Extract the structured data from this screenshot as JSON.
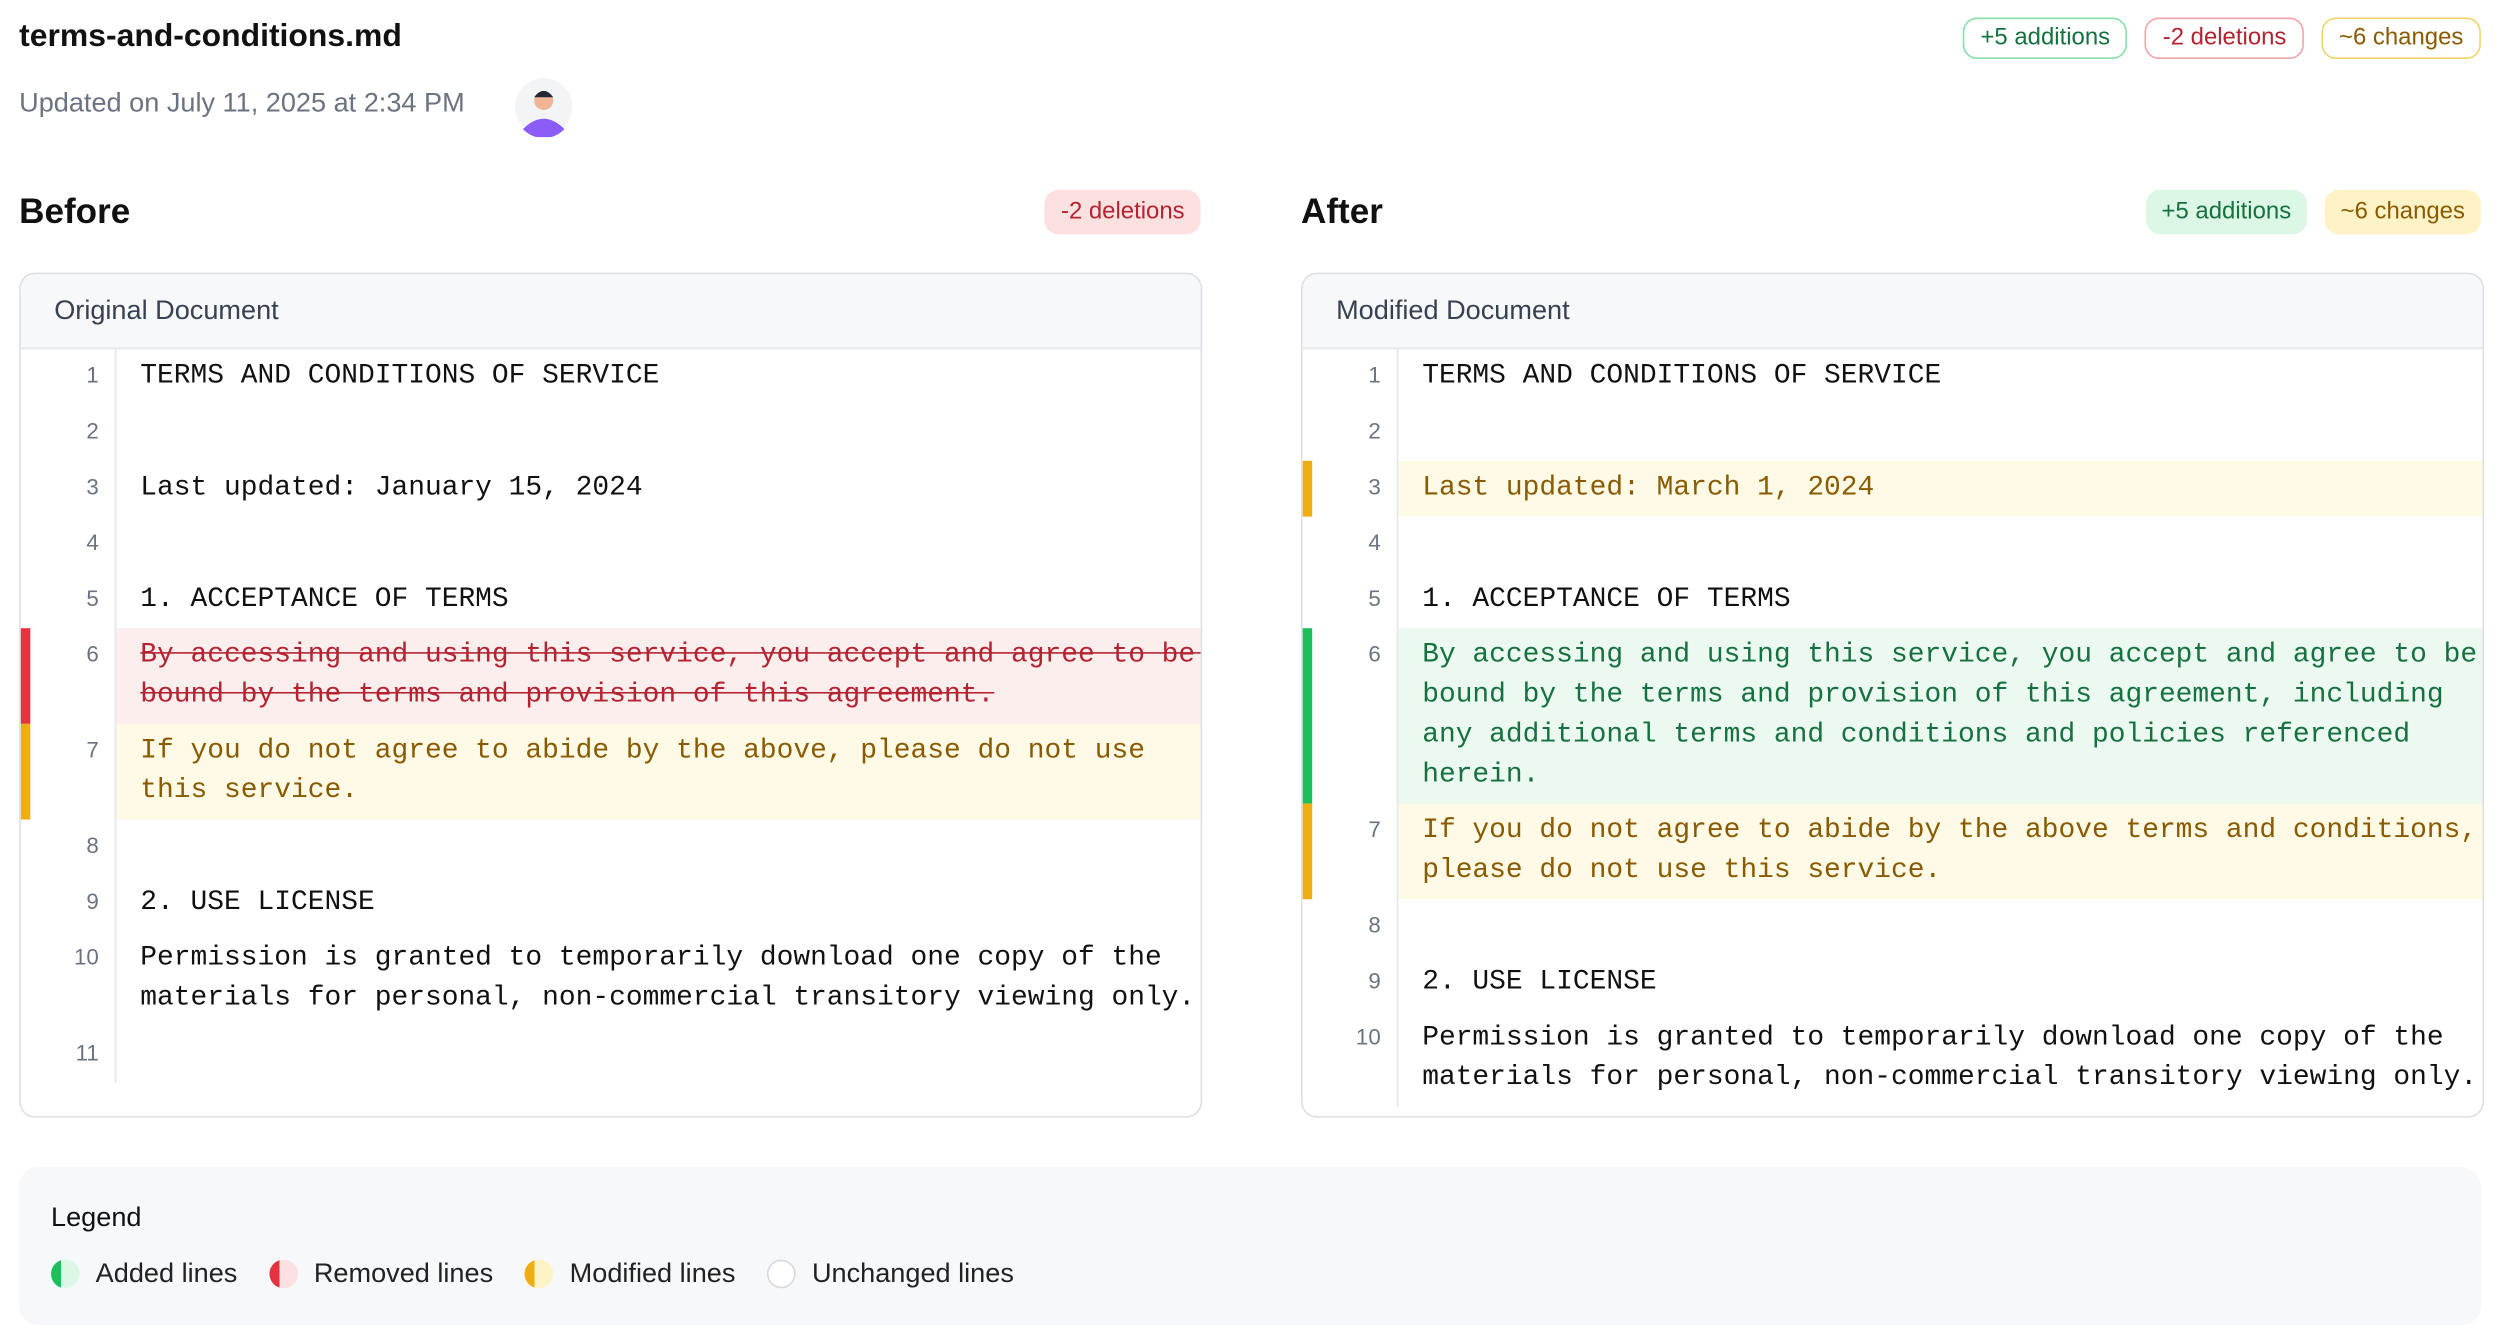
{
  "header": {
    "filename": "terms-and-conditions.md",
    "updated": "Updated on July 11, 2025 at 2:34 PM",
    "badges": [
      {
        "text": "+5 additions",
        "kind": "added"
      },
      {
        "text": "-2 deletions",
        "kind": "removed"
      },
      {
        "text": "~6 changes",
        "kind": "modified"
      }
    ]
  },
  "before": {
    "title": "Before",
    "badges": [
      {
        "text": "-2 deletions",
        "kind": "removed"
      }
    ],
    "panel_title": "Original Document",
    "lines": [
      {
        "number": 1,
        "text": "TERMS AND CONDITIONS OF SERVICE",
        "status": "unchanged"
      },
      {
        "number": 2,
        "text": "",
        "status": "unchanged"
      },
      {
        "number": 3,
        "text": "Last updated: January 15, 2024",
        "status": "unchanged"
      },
      {
        "number": 4,
        "text": "",
        "status": "unchanged"
      },
      {
        "number": 5,
        "text": "1. ACCEPTANCE OF TERMS",
        "status": "unchanged"
      },
      {
        "number": 6,
        "text": "By accessing and using this service, you accept and agree to be bound by the terms and provision of this agreement.",
        "status": "removed"
      },
      {
        "number": 7,
        "text": "If you do not agree to abide by the above, please do not use this service.",
        "status": "modified"
      },
      {
        "number": 8,
        "text": "",
        "status": "unchanged"
      },
      {
        "number": 9,
        "text": "2. USE LICENSE",
        "status": "unchanged"
      },
      {
        "number": 10,
        "text": "Permission is granted to temporarily download one copy of the materials for personal, non-commercial transitory viewing only.",
        "status": "unchanged"
      },
      {
        "number": 11,
        "text": "",
        "status": "unchanged"
      }
    ]
  },
  "after": {
    "title": "After",
    "badges": [
      {
        "text": "+5 additions",
        "kind": "added"
      },
      {
        "text": "~6 changes",
        "kind": "modified"
      }
    ],
    "panel_title": "Modified Document",
    "lines": [
      {
        "number": 1,
        "text": "TERMS AND CONDITIONS OF SERVICE",
        "status": "unchanged"
      },
      {
        "number": 2,
        "text": "",
        "status": "unchanged"
      },
      {
        "number": 3,
        "text": "Last updated: March 1, 2024",
        "status": "modified"
      },
      {
        "number": 4,
        "text": "",
        "status": "unchanged"
      },
      {
        "number": 5,
        "text": "1. ACCEPTANCE OF TERMS",
        "status": "unchanged"
      },
      {
        "number": 6,
        "text": "By accessing and using this service, you accept and agree to be bound by the terms and provision of this agreement, including any additional terms and conditions and policies referenced herein.",
        "status": "added"
      },
      {
        "number": 7,
        "text": "If you do not agree to abide by the above terms and conditions, please do not use this service.",
        "status": "modified"
      },
      {
        "number": 8,
        "text": "",
        "status": "unchanged"
      },
      {
        "number": 9,
        "text": "2. USE LICENSE",
        "status": "unchanged"
      },
      {
        "number": 10,
        "text": "Permission is granted to temporarily download one copy of the materials for personal, non-commercial transitory viewing only.",
        "status": "unchanged"
      }
    ]
  },
  "legend": {
    "title": "Legend",
    "items": [
      {
        "text": "Added lines",
        "kind": "added"
      },
      {
        "text": "Removed lines",
        "kind": "removed"
      },
      {
        "text": "Modified lines",
        "kind": "modified"
      },
      {
        "text": "Unchanged lines",
        "kind": "unchanged"
      }
    ]
  }
}
